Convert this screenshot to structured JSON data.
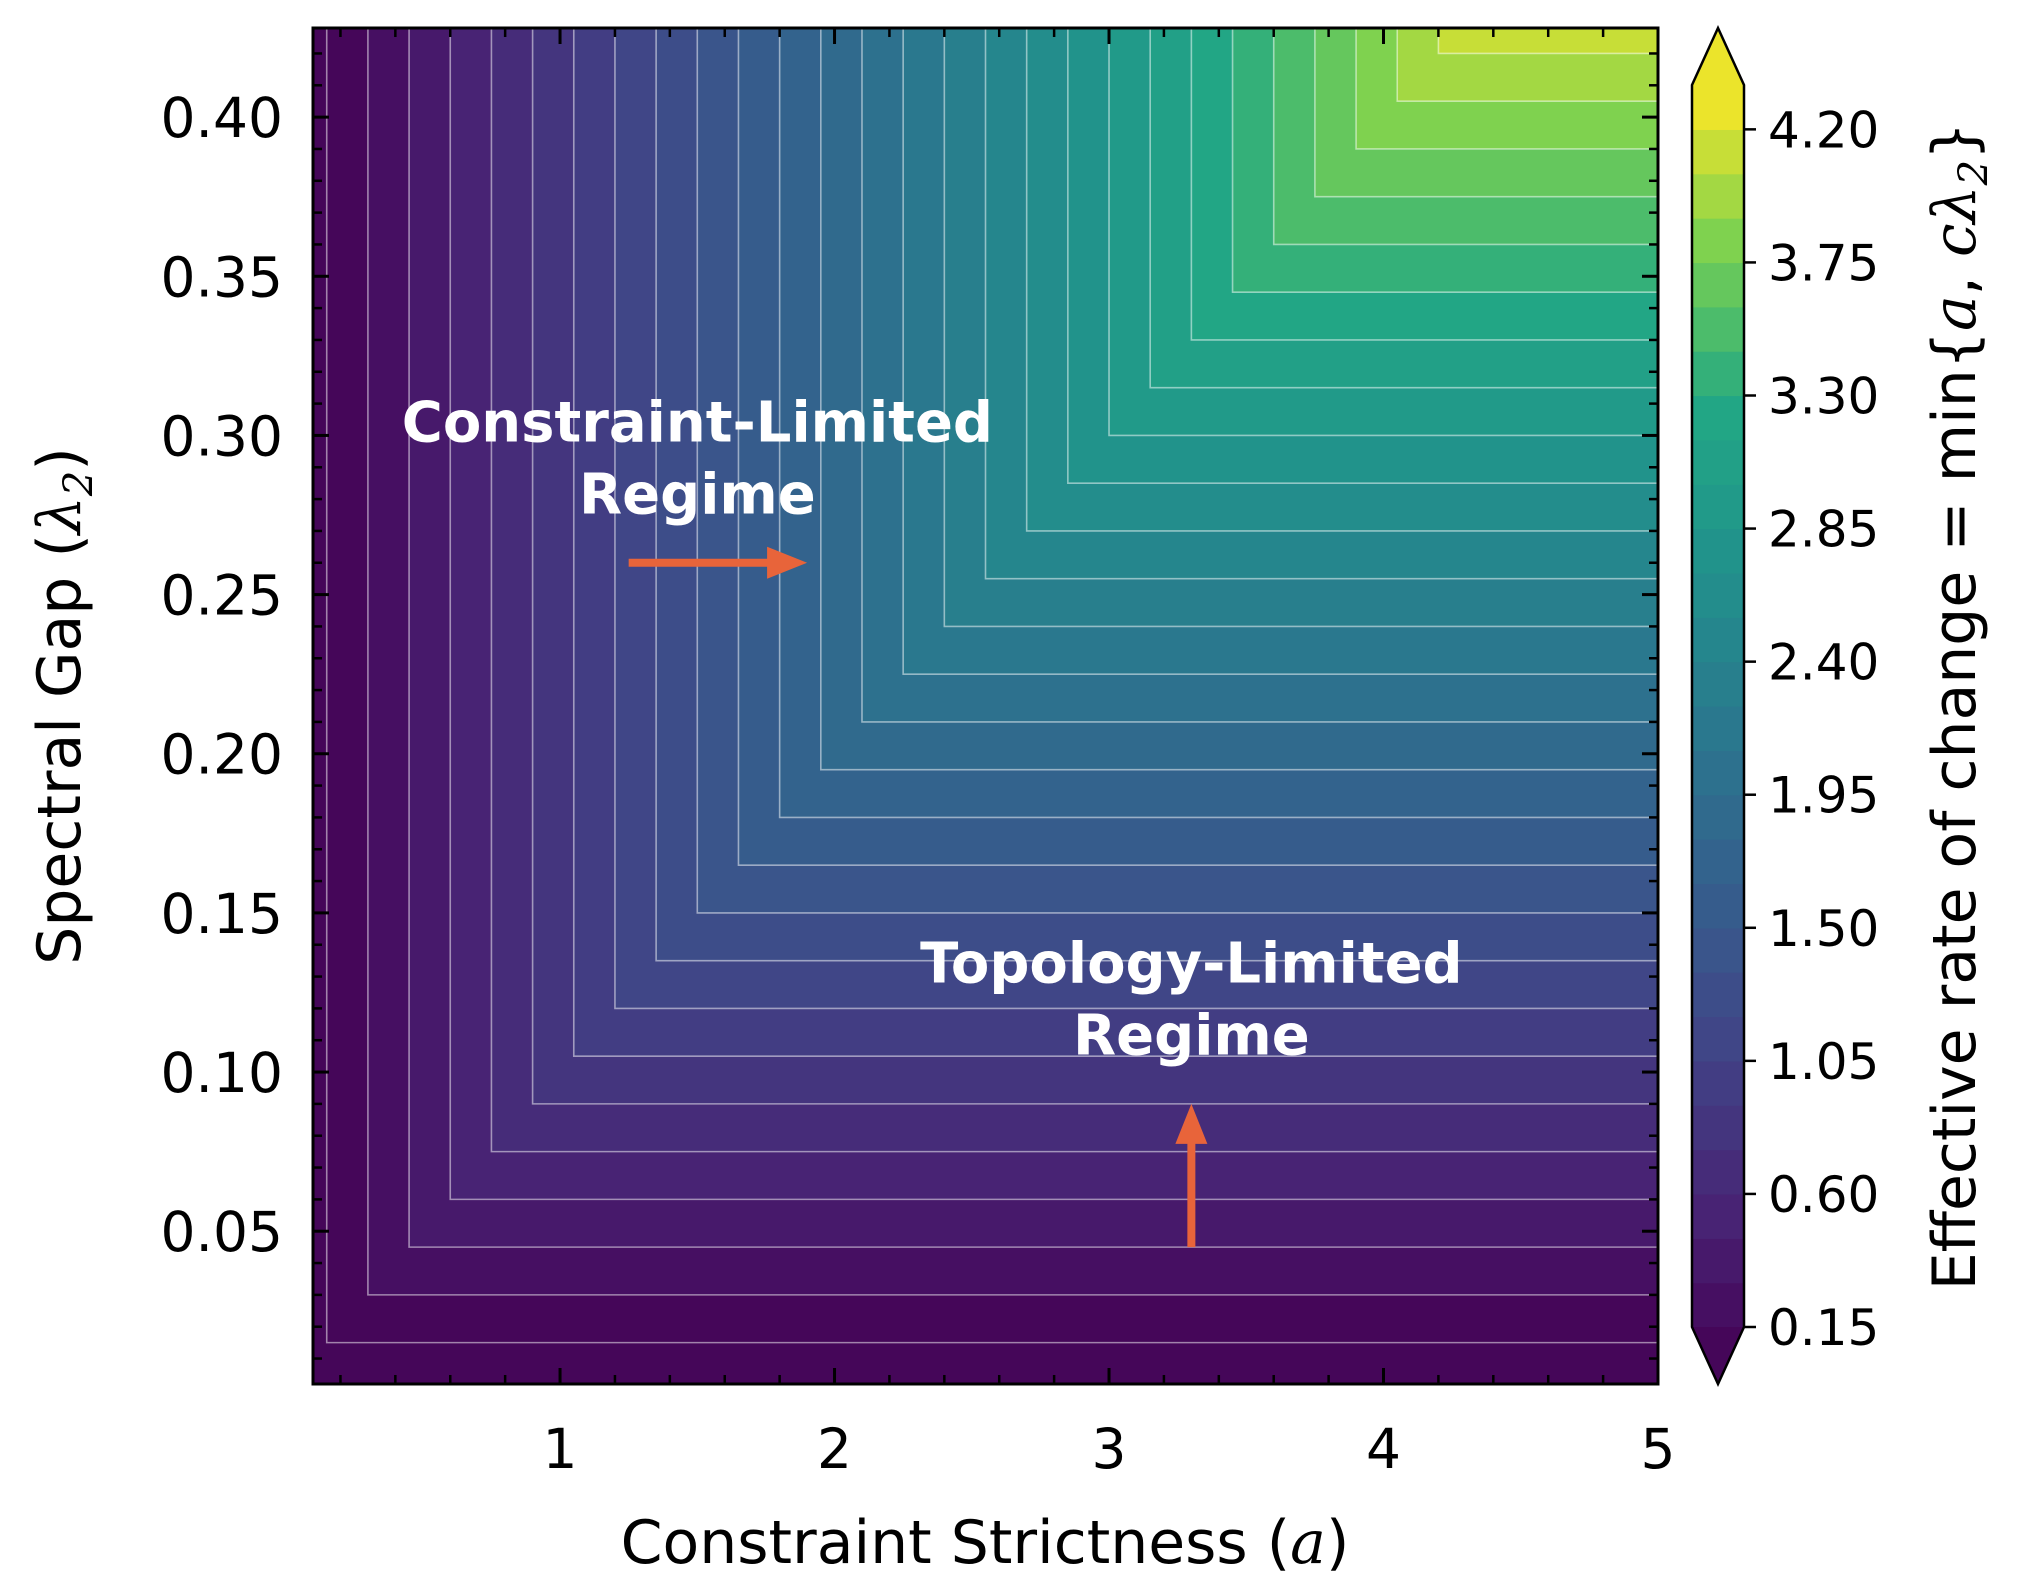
{
  "chart_data": {
    "type": "heatmap",
    "subtype": "filled-contour",
    "function": "min(a, c*lambda2)",
    "c": 10,
    "x": {
      "label": "Constraint Strictness (",
      "label_math": "a",
      "label_close": ")",
      "range": [
        0.1,
        5.0
      ],
      "ticks": [
        1,
        2,
        3,
        4,
        5
      ],
      "tick_labels": [
        "1",
        "2",
        "3",
        "4",
        "5"
      ]
    },
    "y": {
      "label": "Spectral Gap (",
      "label_math": "λ",
      "label_sub": "2",
      "label_close": ")",
      "range": [
        0.002,
        0.428
      ],
      "ticks": [
        0.05,
        0.1,
        0.15,
        0.2,
        0.25,
        0.3,
        0.35,
        0.4
      ],
      "tick_labels": [
        "0.05",
        "0.10",
        "0.15",
        "0.20",
        "0.25",
        "0.30",
        "0.35",
        "0.40"
      ]
    },
    "contour_levels": {
      "start": 0.15,
      "step": 0.15,
      "count": 28
    },
    "colorbar": {
      "label_text": "Effective rate of change  = min{",
      "label_math_1": "a",
      "label_sep": ", ",
      "label_math_2": "cλ",
      "label_sub": "2",
      "label_close": "}",
      "range": [
        0.15,
        4.35
      ],
      "ticks": [
        0.15,
        0.6,
        1.05,
        1.5,
        1.95,
        2.4,
        2.85,
        3.3,
        3.75,
        4.2
      ],
      "tick_labels": [
        "0.15",
        "0.60",
        "1.05",
        "1.50",
        "1.95",
        "2.40",
        "2.85",
        "3.30",
        "3.75",
        "4.20"
      ],
      "extend": "both",
      "colormap": "viridis"
    },
    "annotations": [
      {
        "lines": [
          "Constraint-Limited",
          "Regime"
        ],
        "x": 1.3,
        "y": 0.295,
        "arrow": {
          "from": [
            1.25,
            0.26
          ],
          "to": [
            1.9,
            0.26
          ],
          "direction": "right"
        }
      },
      {
        "lines": [
          "Topology-Limited",
          "Regime"
        ],
        "x": 3.3,
        "y": 0.125,
        "arrow": {
          "from": [
            3.3,
            0.045
          ],
          "to": [
            3.3,
            0.09
          ],
          "direction": "up"
        }
      }
    ],
    "arrow_color": "#e8643a",
    "contour_line_color": "#ffffff",
    "grid": false
  }
}
